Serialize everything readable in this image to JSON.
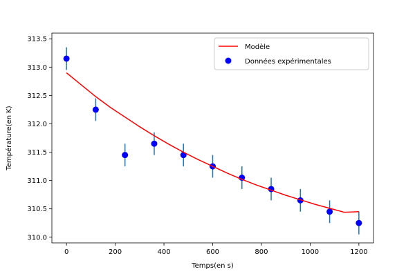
{
  "chart_data": {
    "type": "scatter",
    "title": "",
    "xlabel": "Temps(en s)",
    "ylabel": "Température(en K)",
    "xlim": [
      -60,
      1260
    ],
    "ylim": [
      309.9,
      313.6
    ],
    "xticks": [
      0,
      200,
      400,
      600,
      800,
      1000,
      1200
    ],
    "yticks": [
      310.0,
      310.5,
      311.0,
      311.5,
      312.0,
      312.5,
      313.0,
      313.5
    ],
    "xtick_labels": [
      "0",
      "200",
      "400",
      "600",
      "800",
      "1000",
      "1200"
    ],
    "ytick_labels": [
      "310.0",
      "310.5",
      "311.0",
      "311.5",
      "312.0",
      "312.5",
      "313.0",
      "313.5"
    ],
    "grid": false,
    "legend_position": "top-right",
    "series": [
      {
        "name": "Données expérimentales",
        "type": "scatter",
        "color": "#0000ff",
        "error_color": "#1f77b4",
        "x": [
          0,
          120,
          240,
          360,
          480,
          600,
          720,
          840,
          960,
          1080,
          1200
        ],
        "y": [
          313.15,
          312.25,
          311.45,
          311.65,
          311.45,
          311.25,
          311.05,
          310.85,
          310.65,
          310.45,
          310.25
        ],
        "yerr": [
          0.2,
          0.2,
          0.2,
          0.2,
          0.2,
          0.2,
          0.2,
          0.2,
          0.2,
          0.2,
          0.2
        ]
      },
      {
        "name": "Modèle",
        "type": "line",
        "color": "#ff0000",
        "x": [
          0,
          60,
          120,
          180,
          240,
          300,
          360,
          420,
          480,
          540,
          600,
          660,
          720,
          780,
          840,
          900,
          960,
          1020,
          1080,
          1140,
          1200
        ],
        "y": [
          312.9,
          312.69,
          312.48,
          312.29,
          312.12,
          311.95,
          311.79,
          311.64,
          311.5,
          311.37,
          311.25,
          311.13,
          311.02,
          310.92,
          310.83,
          310.74,
          310.66,
          310.58,
          310.51,
          310.44,
          310.45
        ]
      }
    ],
    "legend": [
      {
        "label": "Modèle",
        "kind": "line",
        "color": "#ff0000"
      },
      {
        "label": "Données expérimentales",
        "kind": "marker",
        "color": "#0000ff"
      }
    ]
  }
}
